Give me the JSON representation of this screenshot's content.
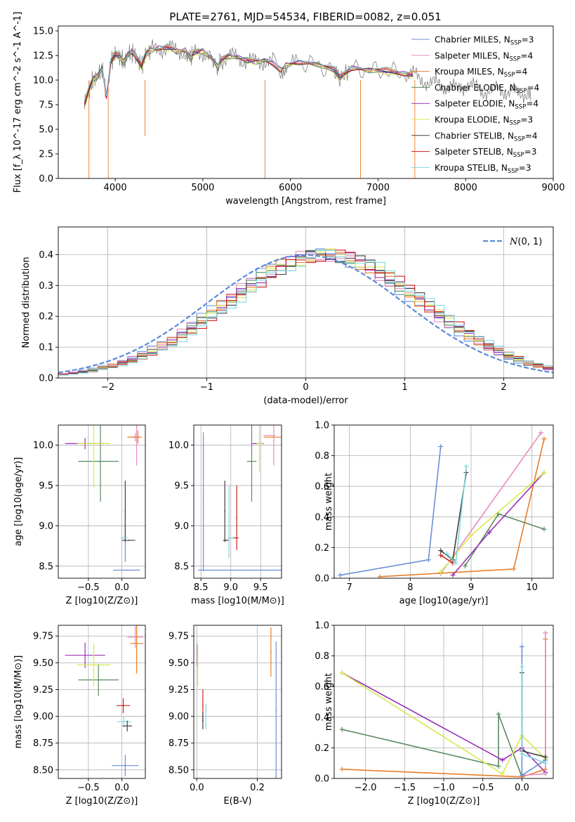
{
  "figure": {
    "title": "PLATE=2761, MJD=54534, FIBERID=0082, z=0.051"
  },
  "chart_data": [
    {
      "id": "spectrum",
      "type": "line",
      "xlabel": "wavelength [Angstrom, rest frame]",
      "ylabel": "Flux [f_λ 10^-17 erg cm^-2 s^-1 A^-1]",
      "xlim": [
        3350,
        9000
      ],
      "ylim": [
        0,
        15.5
      ],
      "xticks": [
        4000,
        5000,
        6000,
        7000,
        8000,
        9000
      ],
      "yticks": [
        0.0,
        2.5,
        5.0,
        7.5,
        10.0,
        12.5,
        15.0
      ],
      "grid": false,
      "legend_position": "top-right",
      "data_color": "#808080",
      "data_x": [
        3650,
        3700,
        3750,
        3800,
        3850,
        3900,
        3950,
        4000,
        4050,
        4100,
        4150,
        4200,
        4250,
        4300,
        4350,
        4400,
        4500,
        4600,
        4700,
        4800,
        4861,
        4900,
        5000,
        5100,
        5175,
        5200,
        5300,
        5400,
        5500,
        5600,
        5700,
        5800,
        5890,
        5950,
        6100,
        6300,
        6500,
        6563,
        6700,
        6900,
        7100,
        7300,
        7400,
        7500,
        7600,
        7700,
        7800,
        7900,
        8000,
        8100,
        8200,
        8300,
        8400,
        8500,
        8600,
        8700,
        8750
      ],
      "data_y": [
        7.6,
        9.0,
        10.1,
        10.4,
        11.2,
        8.3,
        11.9,
        12.6,
        12.4,
        11.8,
        12.7,
        12.8,
        12.2,
        11.4,
        12.6,
        13.0,
        13.2,
        13.3,
        12.9,
        13.0,
        12.2,
        12.8,
        12.9,
        12.2,
        11.3,
        12.0,
        12.4,
        12.3,
        12.0,
        11.8,
        12.0,
        11.7,
        11.0,
        11.5,
        11.8,
        11.6,
        11.0,
        10.2,
        11.2,
        11.0,
        10.9,
        10.6,
        10.5,
        10.2,
        9.5,
        9.7,
        9.3,
        9.0,
        9.6,
        9.2,
        9.0,
        8.8,
        9.1,
        8.8,
        8.6,
        8.8,
        8.5
      ],
      "model_x": [
        3650,
        3700,
        3750,
        3800,
        3850,
        3900,
        3950,
        4000,
        4050,
        4100,
        4150,
        4200,
        4250,
        4300,
        4350,
        4400,
        4500,
        4600,
        4700,
        4800,
        4861,
        4900,
        5000,
        5100,
        5175,
        5200,
        5300,
        5400,
        5500,
        5600,
        5700,
        5800,
        5890,
        5950,
        6100,
        6300,
        6500,
        6563,
        6700,
        6900,
        7100,
        7300,
        7400
      ],
      "series": [
        {
          "name": "Chabrier MILES, N_SSP=3",
          "label_main": "Chabrier MILES, N",
          "label_sub": "SSP",
          "label_tail": "=3",
          "color": "#6890d8",
          "offset": 0.0
        },
        {
          "name": "Salpeter MILES, N_SSP=4",
          "label_main": "Salpeter MILES, N",
          "label_sub": "SSP",
          "label_tail": "=4",
          "color": "#e88ac0",
          "offset": 0.15
        },
        {
          "name": "Kroupa MILES, N_SSP=4",
          "label_main": "Kroupa MILES, N",
          "label_sub": "SSP",
          "label_tail": "=4",
          "color": "#e87d28",
          "offset": 0.1
        },
        {
          "name": "Chabrier ELODIE, N_SSP=4",
          "label_main": "Chabrier ELODIE, N",
          "label_sub": "SSP",
          "label_tail": "=4",
          "color": "#5a8a60",
          "offset": -0.05
        },
        {
          "name": "Salpeter ELODIE, N_SSP=4",
          "label_main": "Salpeter ELODIE, N",
          "label_sub": "SSP",
          "label_tail": "=4",
          "color": "#9a30b8",
          "offset": 0.05
        },
        {
          "name": "Kroupa ELODIE, N_SSP=3",
          "label_main": "Kroupa ELODIE, N",
          "label_sub": "SSP",
          "label_tail": "=3",
          "color": "#d8e850",
          "offset": -0.1
        },
        {
          "name": "Chabrier STELIB, N_SSP=4",
          "label_main": "Chabrier STELIB, N",
          "label_sub": "SSP",
          "label_tail": "=4",
          "color": "#404040",
          "offset": 0.0
        },
        {
          "name": "Salpeter STELIB, N_SSP=3",
          "label_main": "Salpeter STELIB, N",
          "label_sub": "SSP",
          "label_tail": "=3",
          "color": "#cc2020",
          "offset": 0.05
        },
        {
          "name": "Kroupa STELIB, N_SSP=3",
          "label_main": "Kroupa STELIB, N",
          "label_sub": "SSP",
          "label_tail": "=3",
          "color": "#80d8e0",
          "offset": 0.2
        }
      ]
    },
    {
      "id": "residuals",
      "type": "line",
      "xlabel": "(data-model)/error",
      "ylabel": "Normed distribution",
      "xlim": [
        -2.5,
        2.5
      ],
      "ylim": [
        0,
        0.49
      ],
      "xticks": [
        -2,
        -1,
        0,
        1,
        2
      ],
      "yticks": [
        0.0,
        0.1,
        0.2,
        0.3,
        0.4
      ],
      "grid": true,
      "legend_position": "top-right",
      "reference": {
        "name": "N(0,1)",
        "label_script": "N",
        "label_tail": "(0, 1)",
        "mean": 0,
        "sigma": 1,
        "color": "#5b8bd8"
      },
      "bin_width": 0.1,
      "histogram_shift": 0.2,
      "histogram_sigma": 1.0
    },
    {
      "id": "age-vs-Z",
      "type": "scatter",
      "xlabel": "Z [log10(Z/Z⊙)]",
      "ylabel": "age [log10(age/yr)]",
      "xlim": [
        -0.95,
        0.35
      ],
      "ylim": [
        8.35,
        10.25
      ],
      "xticks": [
        -0.5,
        0.0
      ],
      "yticks": [
        8.5,
        9.0,
        9.5,
        10.0
      ],
      "grid": true,
      "points": [
        {
          "x": 0.07,
          "y": 8.45,
          "xerr": 0.2,
          "yerr": 0.0,
          "color": "#6890d8"
        },
        {
          "x": 0.05,
          "y": 8.85,
          "xerr": 0.02,
          "yerr": 0.3,
          "color": "#6890d8"
        },
        {
          "x": 0.2,
          "y": 10.1,
          "xerr": 0.1,
          "yerr": 0.05,
          "color": "#e88ac0"
        },
        {
          "x": 0.22,
          "y": 10.05,
          "xerr": 0.0,
          "yerr": 0.3,
          "color": "#e88ac0"
        },
        {
          "x": 0.18,
          "y": 10.1,
          "xerr": 0.1,
          "yerr": 0.0,
          "color": "#e87d28"
        },
        {
          "x": 0.24,
          "y": 10.1,
          "xerr": 0.0,
          "yerr": 0.08,
          "color": "#e87d28"
        },
        {
          "x": -0.35,
          "y": 9.8,
          "xerr": 0.3,
          "yerr": 0.0,
          "color": "#5a8a60"
        },
        {
          "x": -0.32,
          "y": 9.8,
          "xerr": 0.0,
          "yerr": 0.5,
          "color": "#5a8a60"
        },
        {
          "x": -0.55,
          "y": 10.02,
          "xerr": 0.3,
          "yerr": 0.07,
          "color": "#9a30b8"
        },
        {
          "x": -0.42,
          "y": 10.02,
          "xerr": 0.25,
          "yerr": 0.55,
          "color": "#d8e850"
        },
        {
          "x": 0.1,
          "y": 8.82,
          "xerr": 0.1,
          "yerr": 0.0,
          "color": "#404040"
        },
        {
          "x": 0.05,
          "y": 9.18,
          "xerr": 0.0,
          "yerr": 0.38,
          "color": "#404040"
        },
        {
          "x": 0.05,
          "y": 9.0,
          "xerr": 0.0,
          "yerr": 0.0,
          "color": "#cc2020"
        },
        {
          "x": 0.03,
          "y": 8.85,
          "xerr": 0.05,
          "yerr": 0.0,
          "color": "#80d8e0"
        }
      ]
    },
    {
      "id": "age-vs-mass",
      "type": "scatter",
      "xlabel": "mass [log10(M/M⊙)]",
      "ylabel": "",
      "xlim": [
        8.38,
        9.85
      ],
      "ylim": [
        8.35,
        10.25
      ],
      "xticks": [
        8.5,
        9.0,
        9.5
      ],
      "yticks": [
        8.5,
        9.0,
        9.5,
        10.0
      ],
      "grid": true,
      "points": [
        {
          "x": 8.54,
          "y": 8.45,
          "xerr": 0.0,
          "yerr": 0.0,
          "xspan": [
            8.45,
            9.85
          ],
          "color": "#6890d8"
        },
        {
          "x": 8.54,
          "y": 9.3,
          "xerr": 0.0,
          "yerr": 0.86,
          "color": "#6890d8"
        },
        {
          "x": 9.7,
          "y": 10.1,
          "xerr": 0.15,
          "yerr": 0.0,
          "color": "#e87d28"
        },
        {
          "x": 9.72,
          "y": 10.05,
          "xerr": 0.0,
          "yerr": 0.3,
          "color": "#e88ac0"
        },
        {
          "x": 9.65,
          "y": 10.12,
          "xerr": 0.1,
          "yerr": 0.0,
          "color": "#e88ac0"
        },
        {
          "x": 9.35,
          "y": 9.8,
          "xerr": 0.08,
          "yerr": 0.5,
          "color": "#5a8a60"
        },
        {
          "x": 9.45,
          "y": 10.02,
          "xerr": 0.1,
          "yerr": 0.0,
          "color": "#9a30b8"
        },
        {
          "x": 9.48,
          "y": 10.02,
          "xerr": 0.05,
          "yerr": 0.35,
          "color": "#d8e850"
        },
        {
          "x": 8.9,
          "y": 9.18,
          "xerr": 0.0,
          "yerr": 0.38,
          "color": "#404040"
        },
        {
          "x": 8.92,
          "y": 8.82,
          "xerr": 0.05,
          "yerr": 0.0,
          "color": "#404040"
        },
        {
          "x": 9.1,
          "y": 9.1,
          "xerr": 0.0,
          "yerr": 0.4,
          "color": "#cc2020"
        },
        {
          "x": 9.05,
          "y": 8.85,
          "xerr": 0.08,
          "yerr": 0.0,
          "color": "#cc2020"
        },
        {
          "x": 8.97,
          "y": 9.05,
          "xerr": 0.0,
          "yerr": 0.45,
          "color": "#80d8e0"
        },
        {
          "x": 9.0,
          "y": 8.85,
          "xerr": 0.05,
          "yerr": 0.0,
          "color": "#80d8e0"
        }
      ]
    },
    {
      "id": "massweight-vs-age",
      "type": "line",
      "xlabel": "age [log10(age/yr)]",
      "ylabel": "mass weight",
      "xlim": [
        6.75,
        10.35
      ],
      "ylim": [
        0,
        1.0
      ],
      "xticks": [
        7,
        8,
        9,
        10
      ],
      "yticks": [
        0.0,
        0.2,
        0.4,
        0.6,
        0.8,
        1.0
      ],
      "grid": true,
      "series": [
        {
          "color": "#6890d8",
          "x": [
            6.85,
            8.3,
            8.5
          ],
          "y": [
            0.02,
            0.12,
            0.86
          ]
        },
        {
          "color": "#e88ac0",
          "x": [
            8.5,
            10.15
          ],
          "y": [
            0.03,
            0.95
          ]
        },
        {
          "color": "#e87d28",
          "x": [
            7.5,
            9.7,
            10.2
          ],
          "y": [
            0.01,
            0.06,
            0.91
          ]
        },
        {
          "color": "#5a8a60",
          "x": [
            8.9,
            9.45,
            10.2
          ],
          "y": [
            0.08,
            0.42,
            0.32
          ]
        },
        {
          "color": "#9a30b8",
          "x": [
            8.7,
            9.3,
            10.2
          ],
          "y": [
            0.02,
            0.3,
            0.69
          ]
        },
        {
          "color": "#d8e850",
          "x": [
            8.5,
            9.0,
            10.2
          ],
          "y": [
            0.04,
            0.28,
            0.69
          ]
        },
        {
          "color": "#404040",
          "x": [
            8.5,
            8.7,
            8.92
          ],
          "y": [
            0.18,
            0.12,
            0.69
          ]
        },
        {
          "color": "#cc2020",
          "x": [
            8.5,
            8.7
          ],
          "y": [
            0.15,
            0.1
          ]
        },
        {
          "color": "#80d8e0",
          "x": [
            8.6,
            8.75,
            8.92
          ],
          "y": [
            0.16,
            0.1,
            0.73
          ]
        }
      ]
    },
    {
      "id": "mass-vs-Z",
      "type": "scatter",
      "xlabel": "Z [log10(Z/Z⊙)]",
      "ylabel": "mass [log10(M/M⊙)]",
      "xlim": [
        -0.95,
        0.35
      ],
      "ylim": [
        8.42,
        9.85
      ],
      "xticks": [
        -0.5,
        0.0
      ],
      "yticks": [
        8.5,
        8.75,
        9.0,
        9.25,
        9.5,
        9.75
      ],
      "grid": true,
      "points": [
        {
          "x": -0.55,
          "y": 9.57,
          "xerr": 0.3,
          "yerr": 0.12,
          "color": "#9a30b8"
        },
        {
          "x": -0.35,
          "y": 9.34,
          "xerr": 0.3,
          "yerr": 0.15,
          "color": "#5a8a60"
        },
        {
          "x": -0.42,
          "y": 9.48,
          "xerr": 0.25,
          "yerr": 0.2,
          "color": "#d8e850"
        },
        {
          "x": 0.05,
          "y": 8.54,
          "xerr": 0.2,
          "yerr": 0.1,
          "color": "#6890d8"
        },
        {
          "x": 0.03,
          "y": 8.95,
          "xerr": 0.1,
          "yerr": 0.05,
          "color": "#80d8e0"
        },
        {
          "x": 0.08,
          "y": 8.91,
          "xerr": 0.07,
          "yerr": 0.05,
          "color": "#404040"
        },
        {
          "x": 0.02,
          "y": 9.1,
          "xerr": 0.1,
          "yerr": 0.07,
          "color": "#cc2020"
        },
        {
          "x": 0.2,
          "y": 9.74,
          "xerr": 0.12,
          "yerr": 0.1,
          "color": "#e88ac0"
        },
        {
          "x": 0.22,
          "y": 9.68,
          "xerr": 0.1,
          "yerr": 0.28,
          "color": "#e87d28"
        }
      ]
    },
    {
      "id": "mass-vs-EBV",
      "type": "scatter",
      "xlabel": "E(B-V)",
      "ylabel": "",
      "xlim": [
        -0.01,
        0.28
      ],
      "ylim": [
        8.42,
        9.85
      ],
      "xticks": [
        0.0,
        0.2
      ],
      "yticks": [
        8.5,
        8.75,
        9.0,
        9.25,
        9.5,
        9.75
      ],
      "grid": true,
      "points": [
        {
          "x": 0.002,
          "y": 9.57,
          "xerr": 0.0,
          "yerr": 0.1,
          "color": "#9a30b8"
        },
        {
          "x": 0.003,
          "y": 9.48,
          "xerr": 0.0,
          "yerr": 0.2,
          "color": "#d8e850"
        },
        {
          "x": 0.02,
          "y": 9.1,
          "xerr": 0.0,
          "yerr": 0.15,
          "color": "#cc2020"
        },
        {
          "x": 0.02,
          "y": 8.96,
          "xerr": 0.0,
          "yerr": 0.08,
          "color": "#404040"
        },
        {
          "x": 0.03,
          "y": 9.0,
          "xerr": 0.0,
          "yerr": 0.12,
          "color": "#80d8e0"
        },
        {
          "x": 0.245,
          "y": 9.6,
          "xerr": 0.0,
          "yerr": 0.23,
          "color": "#e87d28"
        },
        {
          "x": 0.262,
          "y": 9.05,
          "xerr": 0.0,
          "yerr": 0.65,
          "color": "#6890d8"
        }
      ]
    },
    {
      "id": "massweight-vs-Z",
      "type": "line",
      "xlabel": "Z [log10(Z/Z⊙)]",
      "ylabel": "mass weight",
      "xlim": [
        -2.4,
        0.4
      ],
      "ylim": [
        0,
        1.0
      ],
      "xticks": [
        -2.0,
        -1.5,
        -1.0,
        -0.5,
        0.0
      ],
      "yticks": [
        0.0,
        0.2,
        0.4,
        0.6,
        0.8,
        1.0
      ],
      "grid": true,
      "series": [
        {
          "color": "#5a8a60",
          "x": [
            -2.3,
            -0.3,
            -0.3,
            0.0
          ],
          "y": [
            0.32,
            0.08,
            0.42,
            0.01
          ]
        },
        {
          "color": "#9a30b8",
          "x": [
            -2.3,
            -0.25,
            0.0,
            0.3
          ],
          "y": [
            0.69,
            0.12,
            0.2,
            0.04
          ]
        },
        {
          "color": "#d8e850",
          "x": [
            -2.3,
            -0.25,
            0.0,
            0.3
          ],
          "y": [
            0.69,
            0.03,
            0.28,
            0.13
          ]
        },
        {
          "color": "#e87d28",
          "x": [
            -2.3,
            0.0,
            0.3,
            0.3
          ],
          "y": [
            0.06,
            0.01,
            0.06,
            0.91
          ]
        },
        {
          "color": "#e88ac0",
          "x": [
            0.0,
            0.3,
            0.3
          ],
          "y": [
            0.02,
            0.03,
            0.95
          ]
        },
        {
          "color": "#6890d8",
          "x": [
            0.0,
            0.0,
            0.3
          ],
          "y": [
            0.86,
            0.02,
            0.12
          ]
        },
        {
          "color": "#404040",
          "x": [
            0.0,
            0.0,
            0.3
          ],
          "y": [
            0.69,
            0.18,
            0.14
          ]
        },
        {
          "color": "#80d8e0",
          "x": [
            0.0,
            0.0,
            0.3
          ],
          "y": [
            0.73,
            0.16,
            0.1
          ]
        }
      ]
    }
  ]
}
